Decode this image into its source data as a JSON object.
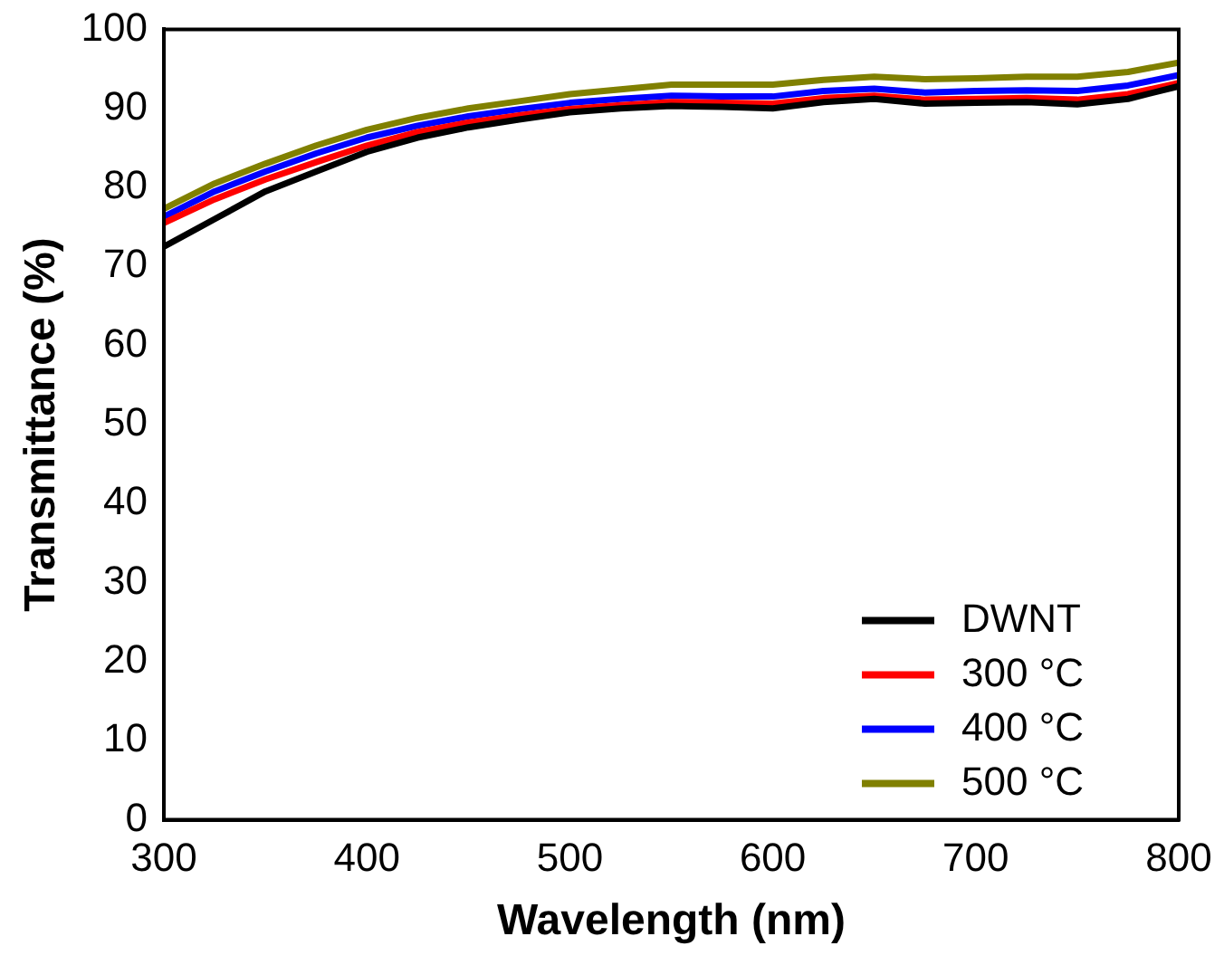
{
  "chart_data": {
    "type": "line",
    "xlabel": "Wavelength (nm)",
    "ylabel": "Transmittance (%)",
    "x": [
      300,
      325,
      350,
      375,
      400,
      425,
      450,
      475,
      500,
      525,
      550,
      575,
      600,
      625,
      650,
      675,
      700,
      725,
      750,
      775,
      800
    ],
    "series": [
      {
        "name": "DWNT",
        "color": "#000000",
        "values": [
          72.5,
          76,
          79.5,
          82,
          84.5,
          86.3,
          87.6,
          88.6,
          89.5,
          90,
          90.3,
          90.2,
          90,
          90.8,
          91.2,
          90.6,
          90.7,
          90.8,
          90.5,
          91.2,
          92.8
        ]
      },
      {
        "name": "300 °C",
        "color": "#ff0000",
        "values": [
          75.5,
          78.5,
          81,
          83.2,
          85.3,
          87,
          88.2,
          89.1,
          89.9,
          90.4,
          90.8,
          90.7,
          90.6,
          91.3,
          91.6,
          91.1,
          91.2,
          91.3,
          91.1,
          91.8,
          93.2
        ]
      },
      {
        "name": "400 °C",
        "color": "#0000ff",
        "values": [
          76.3,
          79.5,
          82,
          84.3,
          86.3,
          87.8,
          89,
          89.9,
          90.7,
          91.2,
          91.6,
          91.5,
          91.5,
          92.2,
          92.5,
          92,
          92.2,
          92.3,
          92.2,
          92.9,
          94.2
        ]
      },
      {
        "name": "500 °C",
        "color": "#808000",
        "values": [
          77.3,
          80.5,
          83,
          85.3,
          87.3,
          88.8,
          90,
          90.9,
          91.8,
          92.4,
          93,
          93,
          93,
          93.6,
          94,
          93.7,
          93.8,
          94,
          94,
          94.6,
          95.8
        ]
      }
    ],
    "xlim": [
      300,
      800
    ],
    "xticks": [
      300,
      400,
      500,
      600,
      700,
      800
    ],
    "ylim": [
      0,
      100
    ],
    "yticks": [
      0,
      10,
      20,
      30,
      40,
      50,
      60,
      70,
      80,
      90,
      100
    ],
    "grid": false,
    "legend": "bottom right",
    "marker": "none",
    "line_style": "solid"
  }
}
